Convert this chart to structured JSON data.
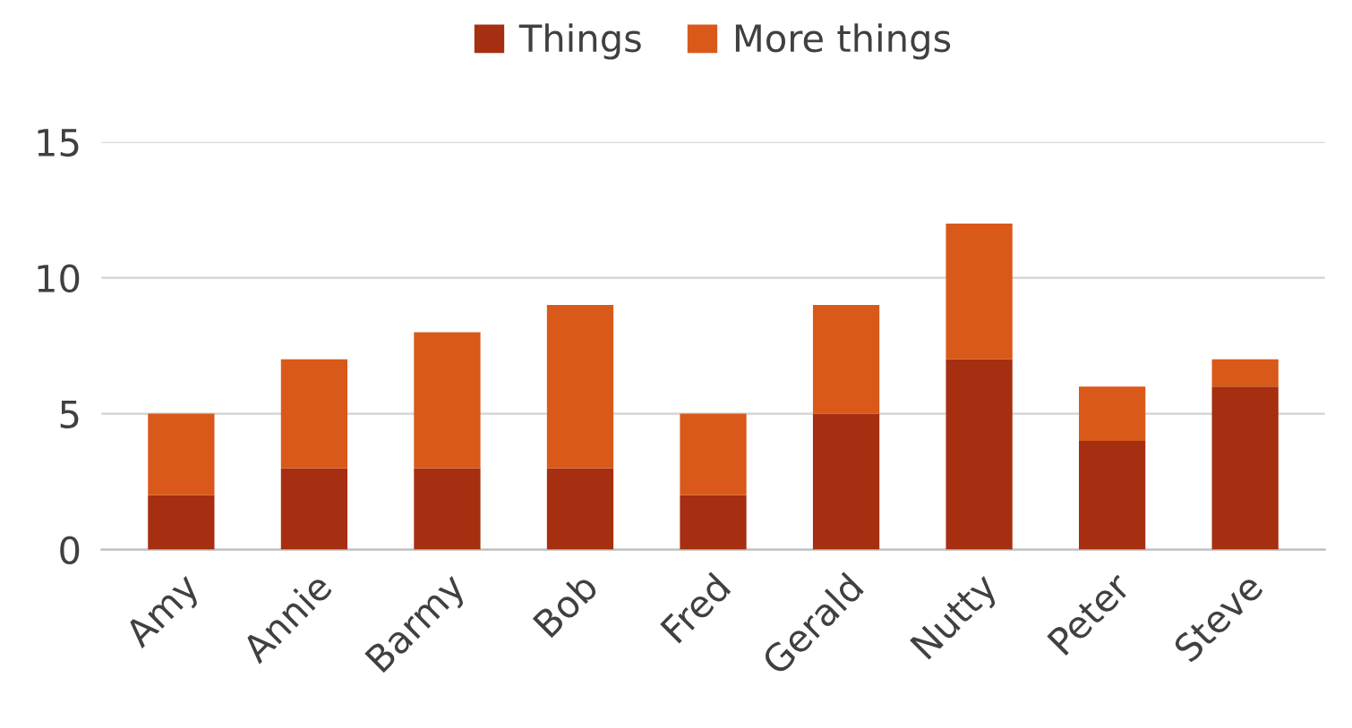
{
  "chart_data": {
    "type": "bar",
    "stacked": true,
    "categories": [
      "Amy",
      "Annie",
      "Barmy",
      "Bob",
      "Fred",
      "Gerald",
      "Nutty",
      "Peter",
      "Steve"
    ],
    "series": [
      {
        "name": "Things",
        "color": "#a52f10",
        "values": [
          2,
          3,
          3,
          3,
          2,
          5,
          7,
          4,
          6
        ]
      },
      {
        "name": "More things",
        "color": "#d9591a",
        "values": [
          3,
          4,
          5,
          6,
          3,
          4,
          5,
          2,
          1
        ]
      }
    ],
    "ylim": [
      0,
      15
    ],
    "yticks": [
      0,
      5,
      10,
      15
    ],
    "grid": "y",
    "legend": "top"
  }
}
